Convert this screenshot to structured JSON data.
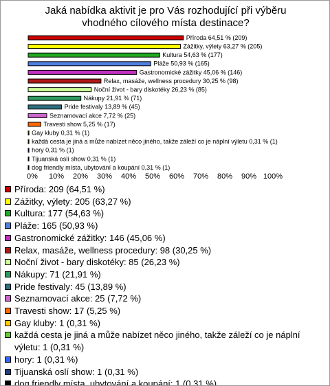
{
  "chart_data": {
    "type": "bar",
    "orientation": "horizontal",
    "title": "Jaká nabídka aktivit je pro Vás rozhodující při výběru vhodného cílového místa destinace?",
    "values": [
      64.51,
      63.27,
      54.63,
      50.93,
      45.06,
      30.25,
      26.23,
      21.91,
      13.89,
      7.72,
      5.25,
      0.31,
      0.31,
      0.31,
      0.31,
      0.31
    ],
    "value_labels": [
      "Příroda 64,51 % (209)",
      "Zážitky, výlety 63,27 % (205)",
      "Kultura 54,63 % (177)",
      "Pláže 50,93 % (165)",
      "Gastronomické zážitky 45,06 % (146)",
      "Relax, masáže, wellness procedury 30,25 % (98)",
      "Noční život - bary diskotéky 26,23 % (85)",
      "Nákupy 21,91 % (71)",
      "Pride festivaly 13,89 % (45)",
      "Seznamovací akce 7,72 % (25)",
      "Travesti show 5,25 % (17)",
      "Gay kluby 0,31 % (1)",
      "každá cesta je jiná a může nabízet něco jiného, takže záleží co je náplní výletu 0,31 % (1)",
      "hory 0,31 % (1)",
      "Tijuanská oslí show 0,31 % (1)",
      "dog friendly místa, ubytování a koupání 0,31 % (1)"
    ],
    "legend": [
      "Příroda: 209 (64,51 %)",
      "Zážitky, výlety: 205 (63,27 %)",
      "Kultura: 177 (54,63 %)",
      "Pláže: 165 (50,93 %)",
      "Gastronomické zážitky: 146 (45,06 %)",
      "Relax, masáže, wellness procedury: 98 (30,25 %)",
      "Noční život - bary diskotéky: 85 (26,23 %)",
      "Nákupy: 71 (21,91 %)",
      "Pride festivaly: 45 (13,89 %)",
      "Seznamovací akce: 25 (7,72 %)",
      "Travesti show: 17 (5,25 %)",
      "Gay kluby: 1 (0,31 %)",
      "každá cesta je jiná a může nabízet něco jiného, takže záleží co je náplní výletu: 1 (0,31 %)",
      "hory: 1 (0,31 %)",
      "Tijuanská oslí show: 1 (0,31 %)",
      "dog friendly místa, ubytování a koupání: 1 (0,31 %)"
    ],
    "colors": [
      "#cc0000",
      "#ffff00",
      "#22aa22",
      "#4f7fe0",
      "#c030c0",
      "#b01818",
      "#ccff99",
      "#2f9a5f",
      "#2f7080",
      "#cc66cc",
      "#ff6a00",
      "#ffcc00",
      "#66cc33",
      "#3366ff",
      "#1f3f7f",
      "#000000"
    ],
    "xlim": [
      0,
      100
    ],
    "xticks": [
      {
        "value": 0,
        "label": "0%"
      },
      {
        "value": 10,
        "label": "10%"
      },
      {
        "value": 20,
        "label": "20%"
      },
      {
        "value": 30,
        "label": "30%"
      },
      {
        "value": 40,
        "label": "40%"
      },
      {
        "value": 50,
        "label": "50%"
      },
      {
        "value": 60,
        "label": "60%"
      },
      {
        "value": 70,
        "label": "70%"
      },
      {
        "value": 80,
        "label": "80%"
      },
      {
        "value": 90,
        "label": "90%"
      },
      {
        "value": 100,
        "label": "100%"
      }
    ]
  }
}
